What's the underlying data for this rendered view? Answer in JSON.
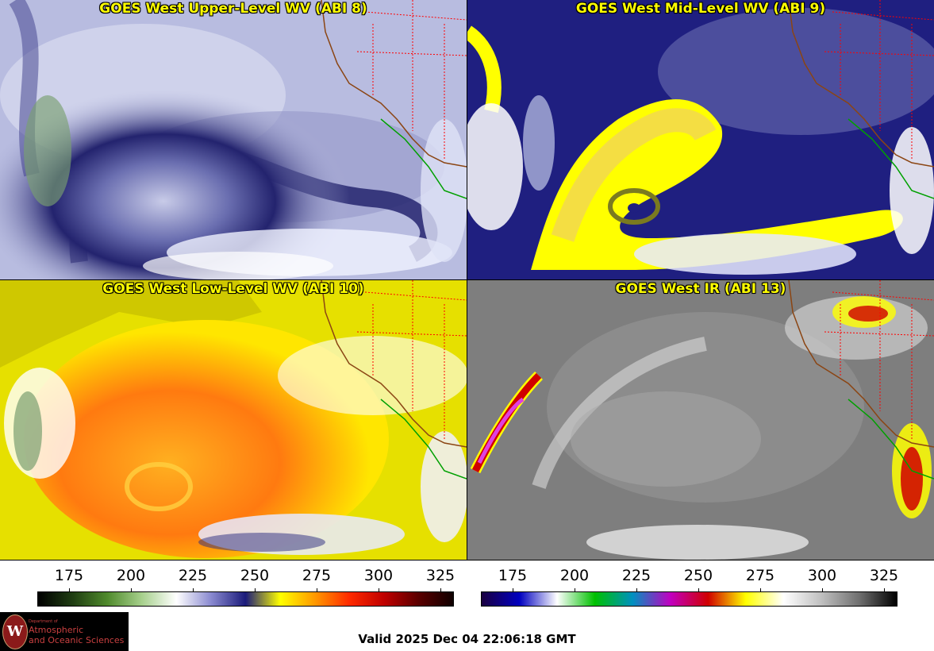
{
  "panels": [
    {
      "id": "p1",
      "title": "GOES West Upper-Level WV (ABI 8)"
    },
    {
      "id": "p2",
      "title": "GOES West Mid-Level WV (ABI 9)"
    },
    {
      "id": "p3",
      "title": "GOES West Low-Level WV (ABI 10)"
    },
    {
      "id": "p4",
      "title": "GOES West IR (ABI 13)"
    }
  ],
  "wv_scale": {
    "ticks": [
      "175",
      "200",
      "225",
      "250",
      "275",
      "300",
      "325"
    ],
    "colors": [
      "#000000",
      "#1f3d12",
      "#4f8a2c",
      "#a6d08c",
      "#ffffff",
      "#8a8ad0",
      "#1a1a7a",
      "#ffff00",
      "#ff9900",
      "#ff2a00",
      "#c00000",
      "#5a0000",
      "#100000"
    ]
  },
  "ir_scale": {
    "ticks": [
      "175",
      "200",
      "225",
      "250",
      "275",
      "300",
      "325"
    ],
    "colors": [
      "#1a0040",
      "#0000c0",
      "#ffffff",
      "#00c000",
      "#0090c0",
      "#c000c0",
      "#d00000",
      "#ffff00",
      "#ffffff",
      "#c0c0c0",
      "#707070",
      "#000000"
    ]
  },
  "logo": {
    "seal_letter": "W",
    "dept": "Department of",
    "line1": "Atmospheric",
    "line2": "and Oceanic Sciences"
  },
  "valid_text": "Valid 2025 Dec 04 22:06:18 GMT",
  "colors": {
    "title_text": "#ffff00",
    "state_borders": "#ff0000",
    "coastline": "#8b4513",
    "mexico_coast": "#00a000"
  }
}
